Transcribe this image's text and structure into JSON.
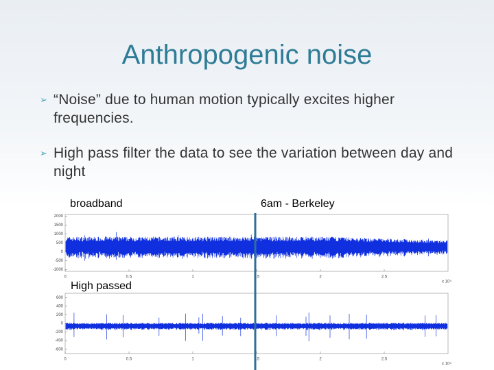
{
  "title": "Anthropogenic noise",
  "bullets": [
    "“Noise” due to human motion typically excites higher frequencies.",
    "High pass filter the data to see the variation between day and night"
  ],
  "labels": {
    "left": "broadband",
    "right": "6am - Berkeley",
    "lower": "High passed"
  },
  "plots": [
    {
      "name": "broadband",
      "xlim": [
        0,
        3
      ],
      "xticks": [
        "0",
        "0.5",
        "1",
        "1.5",
        "2",
        "2.5"
      ],
      "xscale": "x 10⁴",
      "ylim": [
        -1100,
        2100
      ],
      "yticks": [
        "2000",
        "1500",
        "1000",
        "500",
        "0",
        "-500",
        "-1000"
      ]
    },
    {
      "name": "high passed",
      "xlim": [
        0,
        3
      ],
      "xticks": [
        "0",
        "0.5",
        "1",
        "1.5",
        "2",
        "2.5"
      ],
      "xscale": "x 10⁴",
      "ylim": [
        -700,
        700
      ],
      "yticks": [
        "600",
        "400",
        "200",
        "0",
        "-200",
        "-400",
        "-600"
      ]
    }
  ]
}
